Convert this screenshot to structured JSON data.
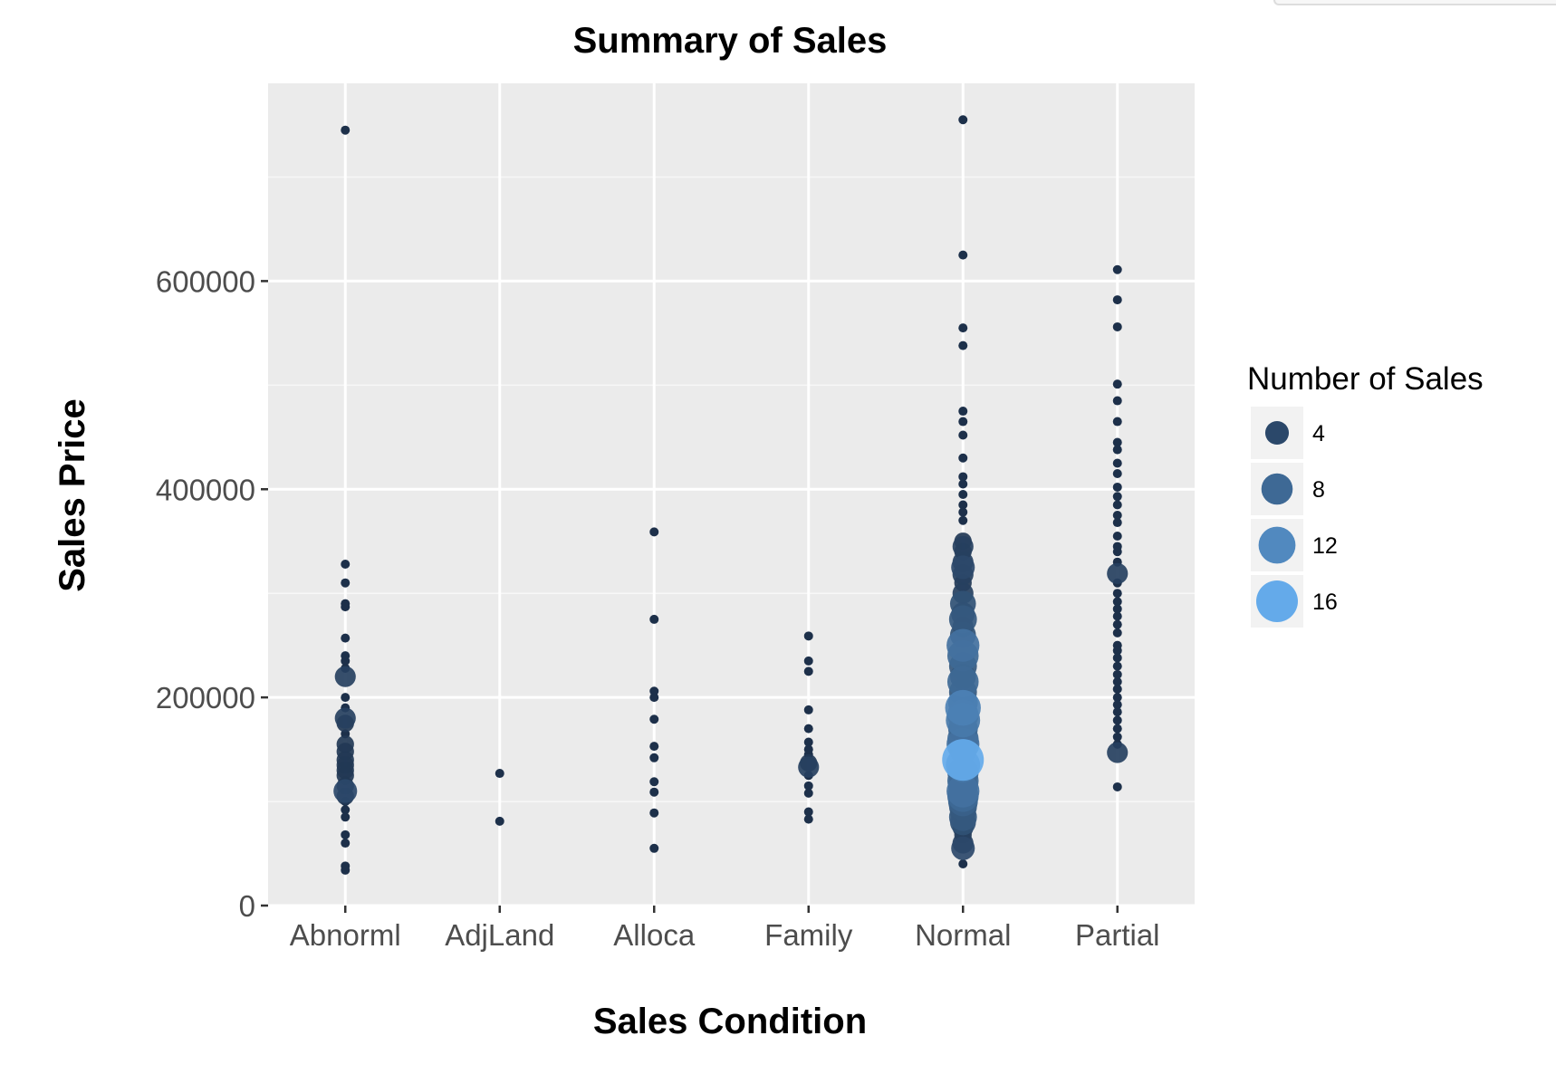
{
  "chart_data": {
    "type": "scatter",
    "title": "Summary of Sales",
    "xlabel": "Sales Condition",
    "ylabel": "Sales Price",
    "categories": [
      "Abnorml",
      "AdjLand",
      "Alloca",
      "Family",
      "Normal",
      "Partial"
    ],
    "ylim": [
      0,
      790000
    ],
    "yticks": [
      0,
      200000,
      400000,
      600000
    ],
    "yticks_labels": [
      "0",
      "200000",
      "400000",
      "600000"
    ],
    "grid": true,
    "legend": {
      "title": "Number of Sales",
      "position": "right",
      "entries": [
        {
          "label": "4",
          "value": 4,
          "color": "#1f344f"
        },
        {
          "label": "8",
          "value": 8,
          "color": "#3a5b83"
        },
        {
          "label": "12",
          "value": 12,
          "color": "#4f82b7"
        },
        {
          "label": "16",
          "value": 16,
          "color": "#64aaea"
        }
      ]
    },
    "series": [
      {
        "category": "Abnorml",
        "points": [
          [
            745000,
            1
          ],
          [
            328000,
            1
          ],
          [
            310000,
            1
          ],
          [
            290000,
            1
          ],
          [
            287000,
            1
          ],
          [
            257000,
            1
          ],
          [
            240000,
            1
          ],
          [
            235000,
            1
          ],
          [
            228000,
            1
          ],
          [
            220000,
            3
          ],
          [
            200000,
            1
          ],
          [
            190000,
            1
          ],
          [
            180000,
            3
          ],
          [
            175000,
            2
          ],
          [
            165000,
            1
          ],
          [
            155000,
            2
          ],
          [
            148000,
            2
          ],
          [
            140000,
            2
          ],
          [
            135000,
            2
          ],
          [
            130000,
            2
          ],
          [
            125000,
            2
          ],
          [
            120000,
            1
          ],
          [
            115000,
            2
          ],
          [
            110000,
            4
          ],
          [
            105000,
            2
          ],
          [
            100000,
            1
          ],
          [
            92000,
            1
          ],
          [
            85000,
            1
          ],
          [
            68000,
            1
          ],
          [
            60000,
            1
          ],
          [
            38000,
            1
          ],
          [
            34000,
            1
          ]
        ]
      },
      {
        "category": "AdjLand",
        "points": [
          [
            127000,
            1
          ],
          [
            81000,
            1
          ]
        ]
      },
      {
        "category": "Alloca",
        "points": [
          [
            359000,
            1
          ],
          [
            275000,
            1
          ],
          [
            206000,
            1
          ],
          [
            200000,
            1
          ],
          [
            179000,
            1
          ],
          [
            153000,
            1
          ],
          [
            142000,
            1
          ],
          [
            119000,
            1
          ],
          [
            109000,
            1
          ],
          [
            89000,
            1
          ],
          [
            55000,
            1
          ]
        ]
      },
      {
        "category": "Family",
        "points": [
          [
            259000,
            1
          ],
          [
            235000,
            1
          ],
          [
            225000,
            1
          ],
          [
            188000,
            1
          ],
          [
            170000,
            1
          ],
          [
            157000,
            1
          ],
          [
            150000,
            1
          ],
          [
            145000,
            1
          ],
          [
            137000,
            2
          ],
          [
            133000,
            3
          ],
          [
            125000,
            1
          ],
          [
            115000,
            1
          ],
          [
            108000,
            1
          ],
          [
            90000,
            1
          ],
          [
            83000,
            1
          ]
        ]
      },
      {
        "category": "Normal",
        "points": [
          [
            755000,
            1
          ],
          [
            625000,
            1
          ],
          [
            555000,
            1
          ],
          [
            538000,
            1
          ],
          [
            475000,
            1
          ],
          [
            465000,
            1
          ],
          [
            452000,
            1
          ],
          [
            430000,
            1
          ],
          [
            412000,
            1
          ],
          [
            405000,
            1
          ],
          [
            395000,
            1
          ],
          [
            385000,
            1
          ],
          [
            378000,
            1
          ],
          [
            370000,
            1
          ],
          [
            350000,
            2
          ],
          [
            345000,
            3
          ],
          [
            340000,
            2
          ],
          [
            330000,
            3
          ],
          [
            325000,
            4
          ],
          [
            318000,
            3
          ],
          [
            310000,
            2
          ],
          [
            300000,
            3
          ],
          [
            290000,
            5
          ],
          [
            280000,
            4
          ],
          [
            275000,
            6
          ],
          [
            268000,
            3
          ],
          [
            260000,
            5
          ],
          [
            250000,
            9
          ],
          [
            240000,
            8
          ],
          [
            230000,
            6
          ],
          [
            220000,
            5
          ],
          [
            215000,
            8
          ],
          [
            205000,
            6
          ],
          [
            195000,
            7
          ],
          [
            190000,
            11
          ],
          [
            183000,
            8
          ],
          [
            178000,
            10
          ],
          [
            170000,
            7
          ],
          [
            160000,
            8
          ],
          [
            155000,
            9
          ],
          [
            148000,
            5
          ],
          [
            140000,
            16
          ],
          [
            135000,
            10
          ],
          [
            128000,
            8
          ],
          [
            120000,
            8
          ],
          [
            115000,
            7
          ],
          [
            110000,
            9
          ],
          [
            105000,
            8
          ],
          [
            100000,
            7
          ],
          [
            95000,
            6
          ],
          [
            90000,
            5
          ],
          [
            85000,
            6
          ],
          [
            80000,
            5
          ],
          [
            75000,
            3
          ],
          [
            68000,
            2
          ],
          [
            60000,
            3
          ],
          [
            55000,
            4
          ],
          [
            40000,
            1
          ]
        ]
      },
      {
        "category": "Partial",
        "points": [
          [
            611000,
            1
          ],
          [
            582000,
            1
          ],
          [
            556000,
            1
          ],
          [
            501000,
            1
          ],
          [
            485000,
            1
          ],
          [
            465000,
            1
          ],
          [
            445000,
            1
          ],
          [
            438000,
            1
          ],
          [
            425000,
            1
          ],
          [
            415000,
            1
          ],
          [
            402000,
            1
          ],
          [
            393000,
            1
          ],
          [
            385000,
            1
          ],
          [
            375000,
            1
          ],
          [
            368000,
            1
          ],
          [
            355000,
            1
          ],
          [
            345000,
            1
          ],
          [
            340000,
            1
          ],
          [
            330000,
            1
          ],
          [
            319000,
            3
          ],
          [
            310000,
            1
          ],
          [
            300000,
            1
          ],
          [
            292000,
            1
          ],
          [
            285000,
            1
          ],
          [
            278000,
            1
          ],
          [
            270000,
            1
          ],
          [
            262000,
            1
          ],
          [
            250000,
            1
          ],
          [
            245000,
            1
          ],
          [
            238000,
            1
          ],
          [
            230000,
            1
          ],
          [
            222000,
            1
          ],
          [
            215000,
            1
          ],
          [
            208000,
            1
          ],
          [
            200000,
            1
          ],
          [
            193000,
            1
          ],
          [
            186000,
            1
          ],
          [
            178000,
            1
          ],
          [
            170000,
            1
          ],
          [
            162000,
            1
          ],
          [
            155000,
            1
          ],
          [
            147000,
            3
          ],
          [
            114000,
            1
          ]
        ]
      }
    ]
  }
}
